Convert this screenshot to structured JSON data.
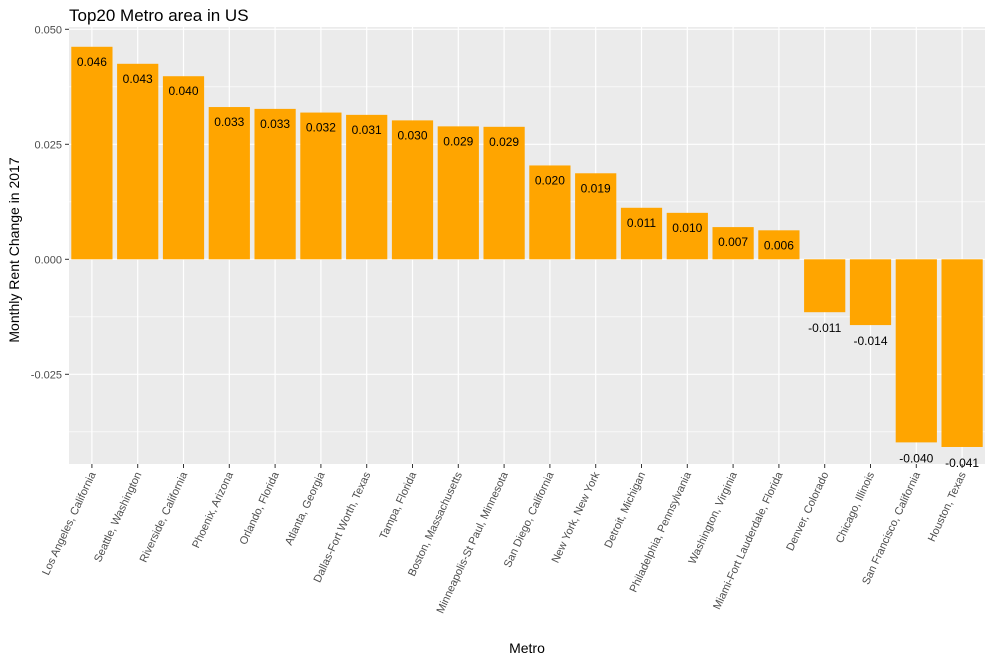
{
  "chart_data": {
    "type": "bar",
    "title": "Top20 Metro area in US",
    "xlabel": "Metro",
    "ylabel": "Monthly Rent Change in 2017",
    "ylim": [
      -0.0445,
      0.0505
    ],
    "yticks": [
      -0.025,
      0.0,
      0.025,
      0.05
    ],
    "ytick_labels": [
      "-0.025",
      "0.000",
      "0.025",
      "0.050"
    ],
    "grid": true,
    "legend": "none",
    "bar_color": "#FFA500",
    "panel_color": "#EBEBEB",
    "categories": [
      "Los Angeles, California",
      "Seattle, Washington",
      "Riverside, California",
      "Phoenix, Arizona",
      "Orlando, Florida",
      "Atlanta, Georgia",
      "Dallas-Fort Worth, Texas",
      "Tampa, Florida",
      "Boston, Massachusetts",
      "Minneapolis-St Paul, Minnesota",
      "San Diego, California",
      "New York, New York",
      "Detroit, Michigan",
      "Philadelphia, Pennsylvania",
      "Washington, Virginia",
      "Miami-Fort Lauderdale, Florida",
      "Denver, Colorado",
      "Chicago, Illinois",
      "San Francisco, California",
      "Houston, Texas"
    ],
    "values": [
      0.0462,
      0.0425,
      0.0398,
      0.0331,
      0.0327,
      0.0319,
      0.0314,
      0.0302,
      0.0289,
      0.0288,
      0.0204,
      0.0187,
      0.0112,
      0.0101,
      0.007,
      0.0063,
      -0.0115,
      -0.0143,
      -0.0398,
      -0.0408
    ],
    "data_labels": [
      "0.046",
      "0.043",
      "0.040",
      "0.033",
      "0.033",
      "0.032",
      "0.031",
      "0.030",
      "0.029",
      "0.029",
      "0.020",
      "0.019",
      "0.011",
      "0.010",
      "0.007",
      "0.006",
      "-0.011",
      "-0.014",
      "-0.040",
      "-0.041"
    ]
  }
}
